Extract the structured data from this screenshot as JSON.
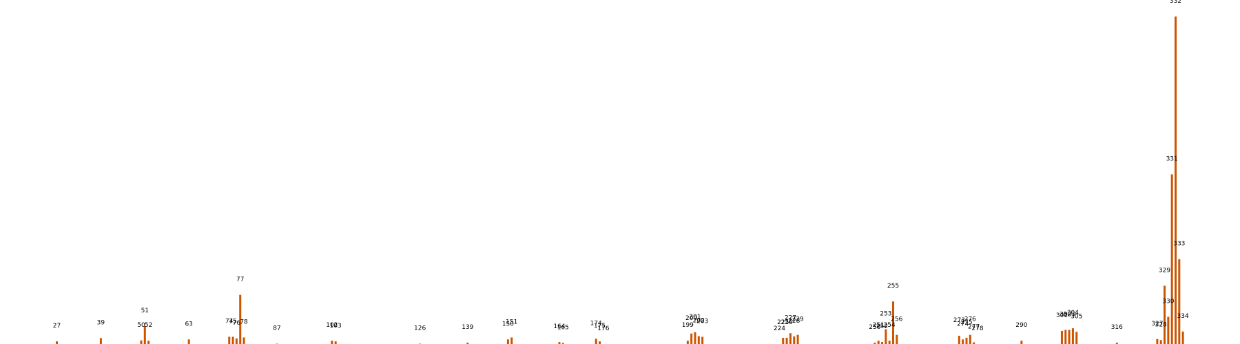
{
  "chart_data": {
    "type": "bar",
    "title": "",
    "xlabel": "",
    "ylabel": "",
    "xlim": [
      12,
      345
    ],
    "ylim": [
      0,
      100
    ],
    "grid": false,
    "legend": "none",
    "bar_color": "#cc5500",
    "series": [
      {
        "x": [
          27,
          39,
          50,
          51,
          52,
          63,
          74,
          75,
          76,
          77,
          78,
          87,
          102,
          103,
          126,
          139,
          150,
          151,
          164,
          165,
          174,
          175,
          176,
          199,
          200,
          201,
          202,
          203,
          224,
          225,
          226,
          227,
          228,
          229,
          250,
          251,
          252,
          253,
          254,
          255,
          256,
          273,
          274,
          275,
          276,
          277,
          278,
          290,
          301,
          302,
          303,
          304,
          305,
          316,
          327,
          328,
          329,
          330,
          331,
          332,
          333,
          334
        ],
        "values": [
          0.8,
          1.8,
          1.1,
          5.5,
          1.0,
          1.4,
          2.2,
          2.2,
          1.7,
          15.0,
          2.0,
          0.1,
          1.0,
          0.8,
          0.1,
          0.4,
          1.4,
          2.0,
          0.6,
          0.3,
          1.6,
          0.8,
          0.0,
          1.0,
          3.2,
          3.6,
          2.4,
          2.2,
          0.0,
          1.9,
          1.9,
          3.3,
          2.3,
          2.8,
          0.4,
          1.0,
          0.6,
          4.5,
          1.0,
          13.0,
          2.8,
          2.5,
          1.4,
          1.9,
          2.8,
          0.5,
          0.0,
          1.0,
          4.0,
          4.3,
          4.3,
          4.8,
          3.7,
          0.4,
          1.5,
          1.2,
          17.8,
          8.3,
          51.8,
          100.0,
          25.9,
          3.8
        ]
      }
    ],
    "peak_labels": [
      "27",
      "39",
      "50",
      "51",
      "52",
      "63",
      "74",
      "75",
      "76",
      "77",
      "78",
      "87",
      "102",
      "103",
      "126",
      "139",
      "150",
      "151",
      "164",
      "165",
      "174",
      "175",
      "176",
      "199",
      "200",
      "201",
      "202",
      "203",
      "224",
      "225",
      "226",
      "227",
      "228",
      "229",
      "250",
      "251",
      "252",
      "253",
      "254",
      "255",
      "256",
      "273",
      "274",
      "275",
      "276",
      "277",
      "278",
      "290",
      "301",
      "302",
      "303",
      "304",
      "305",
      "316",
      "327",
      "328",
      "329",
      "330",
      "331",
      "332",
      "333",
      "334"
    ]
  }
}
